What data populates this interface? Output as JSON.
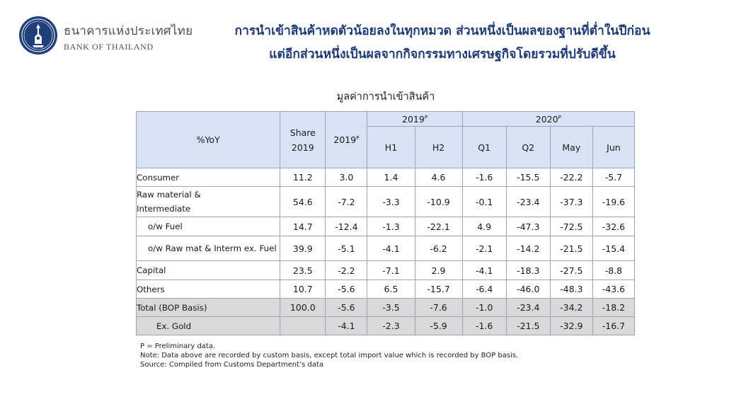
{
  "bank": {
    "name_th": "ธนาคารแห่งประเทศไทย",
    "name_en": "BANK OF THAILAND"
  },
  "headline": {
    "line1": "การนำเข้าสินค้าหดตัวน้อยลงในทุกหมวด ส่วนหนึ่งเป็นผลของฐานที่ต่ำในปีก่อน",
    "line2": "แต่อีกส่วนหนึ่งเป็นผลจากกิจกรรมทางเศรษฐกิจโดยรวมที่ปรับดีขึ้น"
  },
  "table": {
    "title": "มูลค่าการนำเข้าสินค้า",
    "header": {
      "label": "%YoY",
      "share_line1": "Share",
      "share_line2": "2019",
      "year": "2019",
      "year_sup": "P",
      "group1": "2019",
      "group1_sup": "P",
      "group2": "2020",
      "group2_sup": "P",
      "h1": "H1",
      "h2": "H2",
      "q1": "Q1",
      "q2": "Q2",
      "may": "May",
      "jun": "Jun"
    },
    "rows": [
      {
        "label": "Consumer",
        "share": "11.2",
        "y2019": "3.0",
        "h1": "1.4",
        "h2": "4.6",
        "q1": "-1.6",
        "q2": "-15.5",
        "may": "-22.2",
        "jun": "-5.7"
      },
      {
        "label": "Raw material & Intermediate",
        "share": "54.6",
        "y2019": "-7.2",
        "h1": "-3.3",
        "h2": "-10.9",
        "q1": "-0.1",
        "q2": "-23.4",
        "may": "-37.3",
        "jun": "-19.6"
      },
      {
        "label": "o/w Fuel",
        "share": "14.7",
        "y2019": "-12.4",
        "h1": "-1.3",
        "h2": "-22.1",
        "q1": "4.9",
        "q2": "-47.3",
        "may": "-72.5",
        "jun": "-32.6"
      },
      {
        "label": "o/w Raw mat & Interm ex. Fuel",
        "share": "39.9",
        "y2019": "-5.1",
        "h1": "-4.1",
        "h2": "-6.2",
        "q1": "-2.1",
        "q2": "-14.2",
        "may": "-21.5",
        "jun": "-15.4"
      },
      {
        "label": "Capital",
        "share": "23.5",
        "y2019": "-2.2",
        "h1": "-7.1",
        "h2": "2.9",
        "q1": "-4.1",
        "q2": "-18.3",
        "may": "-27.5",
        "jun": "-8.8"
      },
      {
        "label": "Others",
        "share": "10.7",
        "y2019": "-5.6",
        "h1": "6.5",
        "h2": "-15.7",
        "q1": "-6.4",
        "q2": "-46.0",
        "may": "-48.3",
        "jun": "-43.6"
      },
      {
        "label": "Total (BOP Basis)",
        "share": "100.0",
        "y2019": "-5.6",
        "h1": "-3.5",
        "h2": "-7.6",
        "q1": "-1.0",
        "q2": "-23.4",
        "may": "-34.2",
        "jun": "-18.2"
      },
      {
        "label": "Ex. Gold",
        "share": "",
        "y2019": "-4.1",
        "h1": "-2.3",
        "h2": "-5.9",
        "q1": "-1.6",
        "q2": "-21.5",
        "may": "-32.9",
        "jun": "-16.7"
      }
    ]
  },
  "notes": {
    "line1": "P = Preliminary data.",
    "line2": "Note: Data above are recorded by custom basis, except total import value which is recorded by BOP basis.",
    "line3": "Source: Compiled from Customs Department’s data"
  }
}
